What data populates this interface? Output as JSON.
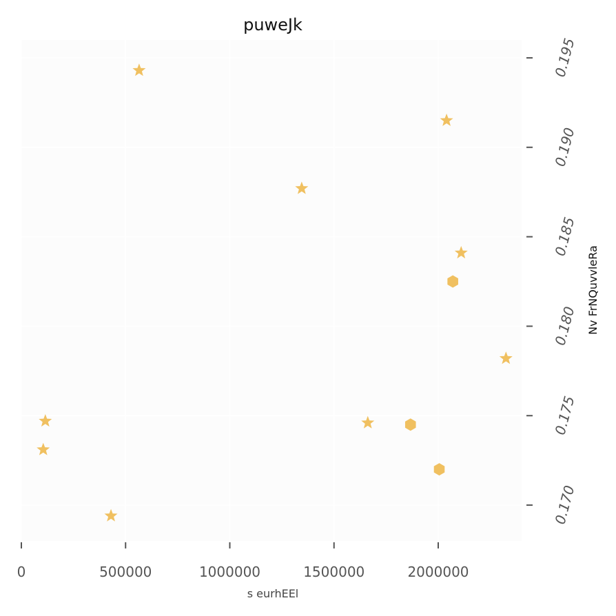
{
  "chart_data": {
    "type": "scatter",
    "title": "puweJk",
    "xlabel": "s eurhEEl",
    "ylabel": "Nv FrNQuvvleRa",
    "xlim": [
      0,
      2400000
    ],
    "ylim": [
      0.168,
      0.196
    ],
    "x_ticks": [
      0,
      500000,
      1000000,
      1500000,
      2000000
    ],
    "x_tick_labels": [
      "0",
      "500000",
      "1000000",
      "1500000",
      "2000000"
    ],
    "y_ticks": [
      0.17,
      0.175,
      0.18,
      0.185,
      0.19,
      0.195
    ],
    "y_tick_labels": [
      "0.170",
      "0.175",
      "0.180",
      "0.185",
      "0.190",
      "0.195"
    ],
    "y_axis_position": "right",
    "grid": true,
    "marker_color": "#f0c060",
    "plot_background": "#fcfcfc",
    "series": [
      {
        "marker": "star",
        "points": [
          {
            "x": 565000,
            "y": 0.1943
          },
          {
            "x": 2040000,
            "y": 0.1915
          },
          {
            "x": 1345000,
            "y": 0.1877
          },
          {
            "x": 2110000,
            "y": 0.1841
          },
          {
            "x": 2325000,
            "y": 0.1782
          },
          {
            "x": 115000,
            "y": 0.1747
          },
          {
            "x": 1662000,
            "y": 0.1746
          },
          {
            "x": 105000,
            "y": 0.1731
          },
          {
            "x": 430000,
            "y": 0.1694
          }
        ]
      },
      {
        "marker": "hexagon",
        "points": [
          {
            "x": 2070000,
            "y": 0.1825
          },
          {
            "x": 1867000,
            "y": 0.1745
          },
          {
            "x": 2005000,
            "y": 0.172
          }
        ]
      }
    ]
  }
}
